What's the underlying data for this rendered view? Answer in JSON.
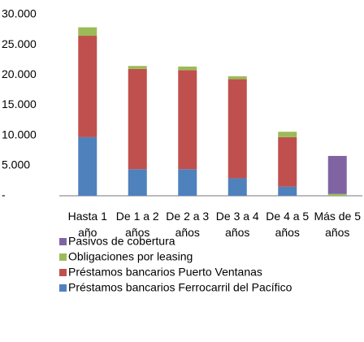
{
  "chart_data": {
    "type": "stacked_bar",
    "categories": [
      "Hasta 1\naño",
      "De 1 a 2\naños",
      "De 2 a 3\naños",
      "De 3 a 4\naños",
      "De 4 a 5\naños",
      "Más de 5\naños"
    ],
    "series": [
      {
        "name": "Préstamos bancarios Ferrocarril del Pacífico",
        "color": "#4f81bd",
        "values": [
          9700,
          4400,
          4400,
          2900,
          1500,
          0
        ]
      },
      {
        "name": "Préstamos bancarios Puerto Ventanas",
        "color": "#c0504d",
        "values": [
          16800,
          16600,
          16400,
          16400,
          8200,
          0
        ]
      },
      {
        "name": "Obligaciones por leasing",
        "color": "#9bbb59",
        "values": [
          1400,
          500,
          600,
          500,
          900,
          300
        ]
      },
      {
        "name": "Pasivos de cobertura",
        "color": "#8064a2",
        "values": [
          0,
          0,
          0,
          0,
          0,
          6300
        ]
      }
    ],
    "ylim": [
      0,
      30000
    ],
    "yticks": [
      {
        "value": 0,
        "label": "-"
      },
      {
        "value": 5000,
        "label": "5.000"
      },
      {
        "value": 10000,
        "label": "10.000"
      },
      {
        "value": 15000,
        "label": "15.000"
      },
      {
        "value": 20000,
        "label": "20.000"
      },
      {
        "value": 25000,
        "label": "25.000"
      },
      {
        "value": 30000,
        "label": "30.000"
      }
    ],
    "grid": false
  }
}
